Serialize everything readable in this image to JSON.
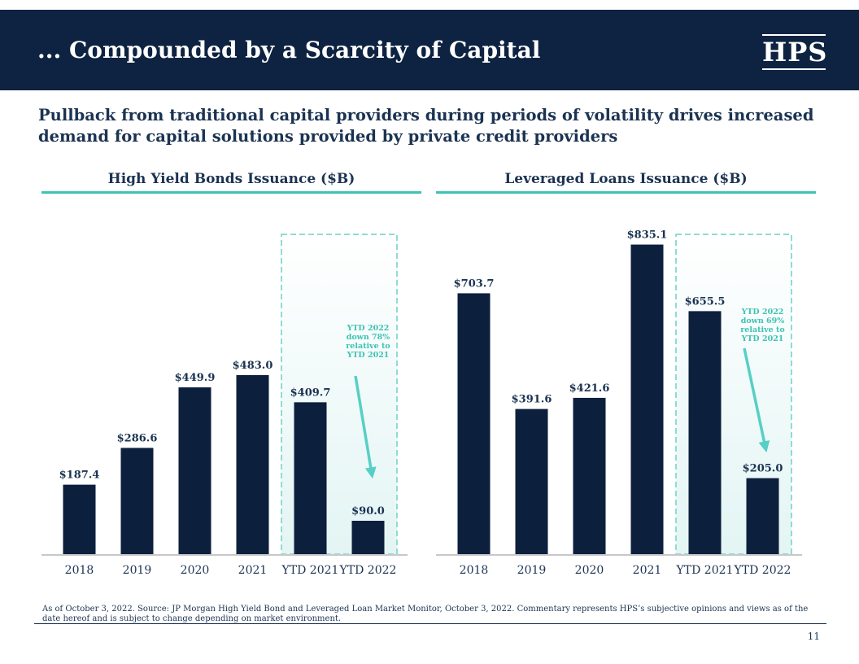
{
  "header": {
    "title": "... Compounded by a Scarcity of Capital",
    "logo_text": "HPS"
  },
  "subtitle": "Pullback from traditional capital providers during periods of volatility drives increased demand for capital solutions provided by private credit providers",
  "colors": {
    "navy": "#0e2341",
    "bar": "#0c1f3d",
    "teal": "#3cc3b3",
    "arrow": "#57cfc6",
    "highlight_fill": "#e3f5f4"
  },
  "chart_data": [
    {
      "type": "bar",
      "title": "High Yield Bonds Issuance ($B)",
      "categories": [
        "2018",
        "2019",
        "2020",
        "2021",
        "YTD 2021",
        "YTD 2022"
      ],
      "values": [
        187.4,
        286.6,
        449.9,
        483.0,
        409.7,
        90.0
      ],
      "value_labels": [
        "$187.4",
        "$286.6",
        "$449.9",
        "$483.0",
        "$409.7",
        "$90.0"
      ],
      "highlight_categories": [
        "YTD 2021",
        "YTD 2022"
      ],
      "annotation": [
        "YTD 2022",
        "down 78%",
        "relative to",
        "YTD 2021"
      ],
      "ylim": [
        0,
        900
      ]
    },
    {
      "type": "bar",
      "title": "Leveraged Loans Issuance ($B)",
      "categories": [
        "2018",
        "2019",
        "2020",
        "2021",
        "YTD 2021",
        "YTD 2022"
      ],
      "values": [
        703.7,
        391.6,
        421.6,
        835.1,
        655.5,
        205.0
      ],
      "value_labels": [
        "$703.7",
        "$391.6",
        "$421.6",
        "$835.1",
        "$655.5",
        "$205.0"
      ],
      "highlight_categories": [
        "YTD 2021",
        "YTD 2022"
      ],
      "annotation": [
        "YTD 2022",
        "down 69%",
        "relative to",
        "YTD 2021"
      ],
      "ylim": [
        0,
        900
      ]
    }
  ],
  "footnote": "As of October 3, 2022. Source: JP Morgan High Yield Bond and Leveraged Loan Market Monitor, October 3, 2022. Commentary represents HPS’s subjective opinions and views as of the date hereof and is subject to change depending on market environment.",
  "page_number": "11"
}
